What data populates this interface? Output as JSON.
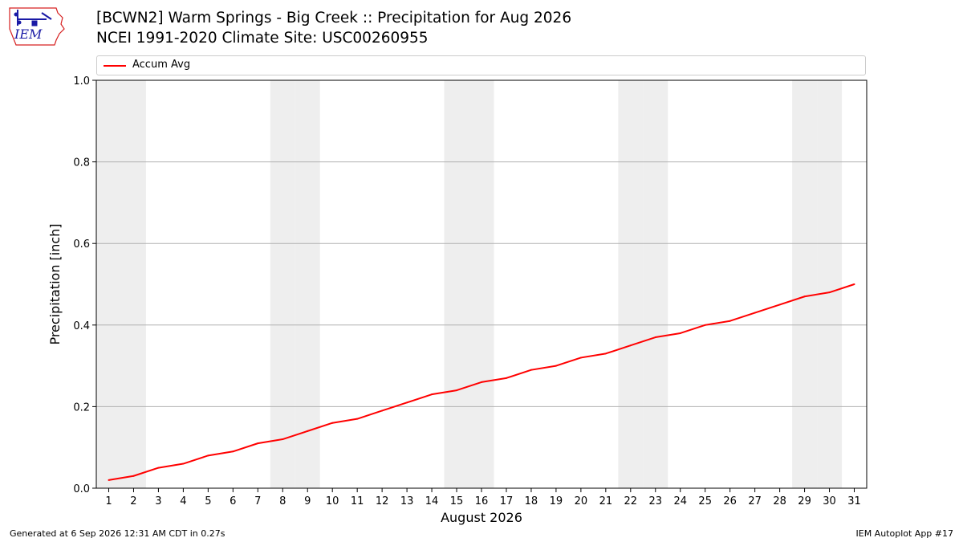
{
  "header": {
    "title_line1": "[BCWN2] Warm Springs - Big Creek :: Precipitation for Aug 2026",
    "title_line2": "NCEI 1991-2020 Climate Site: USC00260955",
    "logo_text": "IEM"
  },
  "footer": {
    "generated": "Generated at 6 Sep 2026 12:31 AM CDT in 0.27s",
    "app": "IEM Autoplot App #17"
  },
  "colors": {
    "series": "#ff0000",
    "weekend_band": "#eeeeee",
    "grid": "#b0b0b0",
    "logo": "#1a1aa6",
    "logo_outline": "#d62020"
  },
  "chart_data": {
    "type": "line",
    "title": "",
    "xlabel": "August 2026",
    "ylabel": "Precipitation [inch]",
    "x": [
      1,
      2,
      3,
      4,
      5,
      6,
      7,
      8,
      9,
      10,
      11,
      12,
      13,
      14,
      15,
      16,
      17,
      18,
      19,
      20,
      21,
      22,
      23,
      24,
      25,
      26,
      27,
      28,
      29,
      30,
      31
    ],
    "xlim": [
      0.5,
      31.5
    ],
    "ylim": [
      0,
      1.0
    ],
    "yticks": [
      0.0,
      0.2,
      0.4,
      0.6,
      0.8,
      1.0
    ],
    "ytick_labels": [
      "0.0",
      "0.2",
      "0.4",
      "0.6",
      "0.8",
      "1.0"
    ],
    "grid": "horizontal",
    "legend_position": "top",
    "shaded_days": [
      1,
      2,
      8,
      9,
      15,
      16,
      22,
      23,
      29,
      30
    ],
    "series": [
      {
        "name": "Accum Avg",
        "values": [
          0.02,
          0.03,
          0.05,
          0.06,
          0.08,
          0.09,
          0.11,
          0.12,
          0.14,
          0.16,
          0.17,
          0.19,
          0.21,
          0.23,
          0.24,
          0.26,
          0.27,
          0.29,
          0.3,
          0.32,
          0.33,
          0.35,
          0.37,
          0.38,
          0.4,
          0.41,
          0.43,
          0.45,
          0.47,
          0.48,
          0.5
        ]
      }
    ]
  }
}
